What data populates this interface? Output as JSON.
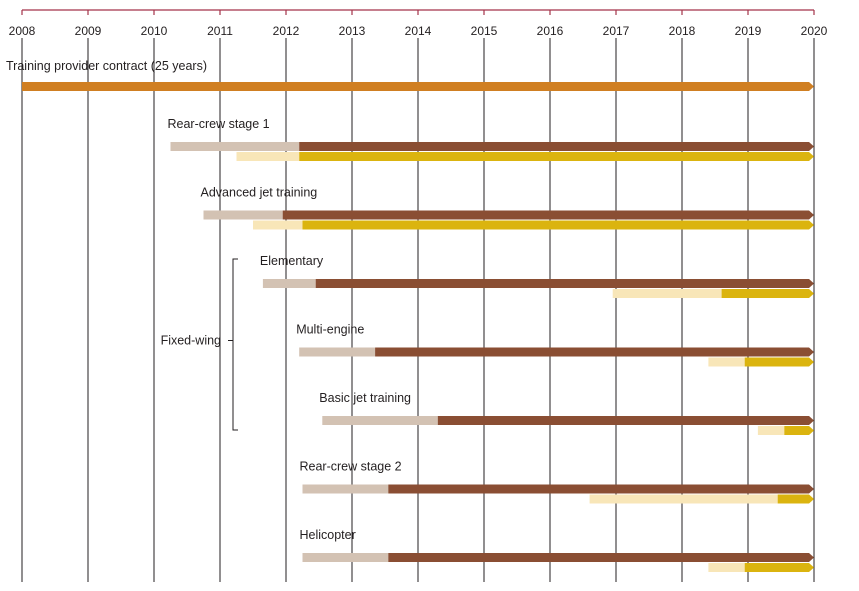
{
  "chart_data": {
    "type": "gantt",
    "x_ticks": [
      "2008",
      "2009",
      "2010",
      "2011",
      "2012",
      "2013",
      "2014",
      "2015",
      "2016",
      "2017",
      "2018",
      "2019",
      "2020"
    ],
    "xlim": [
      2008,
      2020
    ],
    "grid": true,
    "colors": {
      "contract": "#d07f22",
      "phase_light_brown": "#d3c2b3",
      "phase_dark_brown": "#8a4e33",
      "phase_light_gold": "#f8e6b8",
      "phase_gold": "#dbb40f",
      "axis": "#a3334a",
      "grid": "#231f20"
    },
    "contract": {
      "label": "Training provider contract (25 years)",
      "start": 2008.0,
      "end": 2020.0
    },
    "group": {
      "label": "Fixed-wing",
      "members": [
        "Elementary",
        "Multi-engine",
        "Basic jet training"
      ]
    },
    "rows": [
      {
        "label": "Rear-crew stage 1",
        "upper": [
          {
            "start": 2010.25,
            "end": 2012.2,
            "color": "phase_light_brown"
          },
          {
            "start": 2012.2,
            "end": 2020.0,
            "color": "phase_dark_brown"
          }
        ],
        "lower": [
          {
            "start": 2011.25,
            "end": 2012.2,
            "color": "phase_light_gold"
          },
          {
            "start": 2012.2,
            "end": 2020.0,
            "color": "phase_gold"
          }
        ]
      },
      {
        "label": "Advanced jet training",
        "upper": [
          {
            "start": 2010.75,
            "end": 2011.95,
            "color": "phase_light_brown"
          },
          {
            "start": 2011.95,
            "end": 2020.0,
            "color": "phase_dark_brown"
          }
        ],
        "lower": [
          {
            "start": 2011.5,
            "end": 2012.25,
            "color": "phase_light_gold"
          },
          {
            "start": 2012.25,
            "end": 2020.0,
            "color": "phase_gold"
          }
        ]
      },
      {
        "label": "Elementary",
        "upper": [
          {
            "start": 2011.65,
            "end": 2012.45,
            "color": "phase_light_brown"
          },
          {
            "start": 2012.45,
            "end": 2020.0,
            "color": "phase_dark_brown"
          }
        ],
        "lower": [
          {
            "start": 2016.95,
            "end": 2018.6,
            "color": "phase_light_gold"
          },
          {
            "start": 2018.6,
            "end": 2020.0,
            "color": "phase_gold"
          }
        ]
      },
      {
        "label": "Multi-engine",
        "upper": [
          {
            "start": 2012.2,
            "end": 2013.35,
            "color": "phase_light_brown"
          },
          {
            "start": 2013.35,
            "end": 2020.0,
            "color": "phase_dark_brown"
          }
        ],
        "lower": [
          {
            "start": 2018.4,
            "end": 2018.95,
            "color": "phase_light_gold"
          },
          {
            "start": 2018.95,
            "end": 2020.0,
            "color": "phase_gold"
          }
        ]
      },
      {
        "label": "Basic jet training",
        "upper": [
          {
            "start": 2012.55,
            "end": 2014.3,
            "color": "phase_light_brown"
          },
          {
            "start": 2014.3,
            "end": 2020.0,
            "color": "phase_dark_brown"
          }
        ],
        "lower": [
          {
            "start": 2019.15,
            "end": 2019.55,
            "color": "phase_light_gold"
          },
          {
            "start": 2019.55,
            "end": 2020.0,
            "color": "phase_gold"
          }
        ]
      },
      {
        "label": "Rear-crew  stage 2",
        "upper": [
          {
            "start": 2012.25,
            "end": 2013.55,
            "color": "phase_light_brown"
          },
          {
            "start": 2013.55,
            "end": 2020.0,
            "color": "phase_dark_brown"
          }
        ],
        "lower": [
          {
            "start": 2016.6,
            "end": 2019.45,
            "color": "phase_light_gold"
          },
          {
            "start": 2019.45,
            "end": 2020.0,
            "color": "phase_gold"
          }
        ]
      },
      {
        "label": "Helicopter",
        "upper": [
          {
            "start": 2012.25,
            "end": 2013.55,
            "color": "phase_light_brown"
          },
          {
            "start": 2013.55,
            "end": 2020.0,
            "color": "phase_dark_brown"
          }
        ],
        "lower": [
          {
            "start": 2018.4,
            "end": 2018.95,
            "color": "phase_light_gold"
          },
          {
            "start": 2018.95,
            "end": 2020.0,
            "color": "phase_gold"
          }
        ]
      }
    ]
  }
}
